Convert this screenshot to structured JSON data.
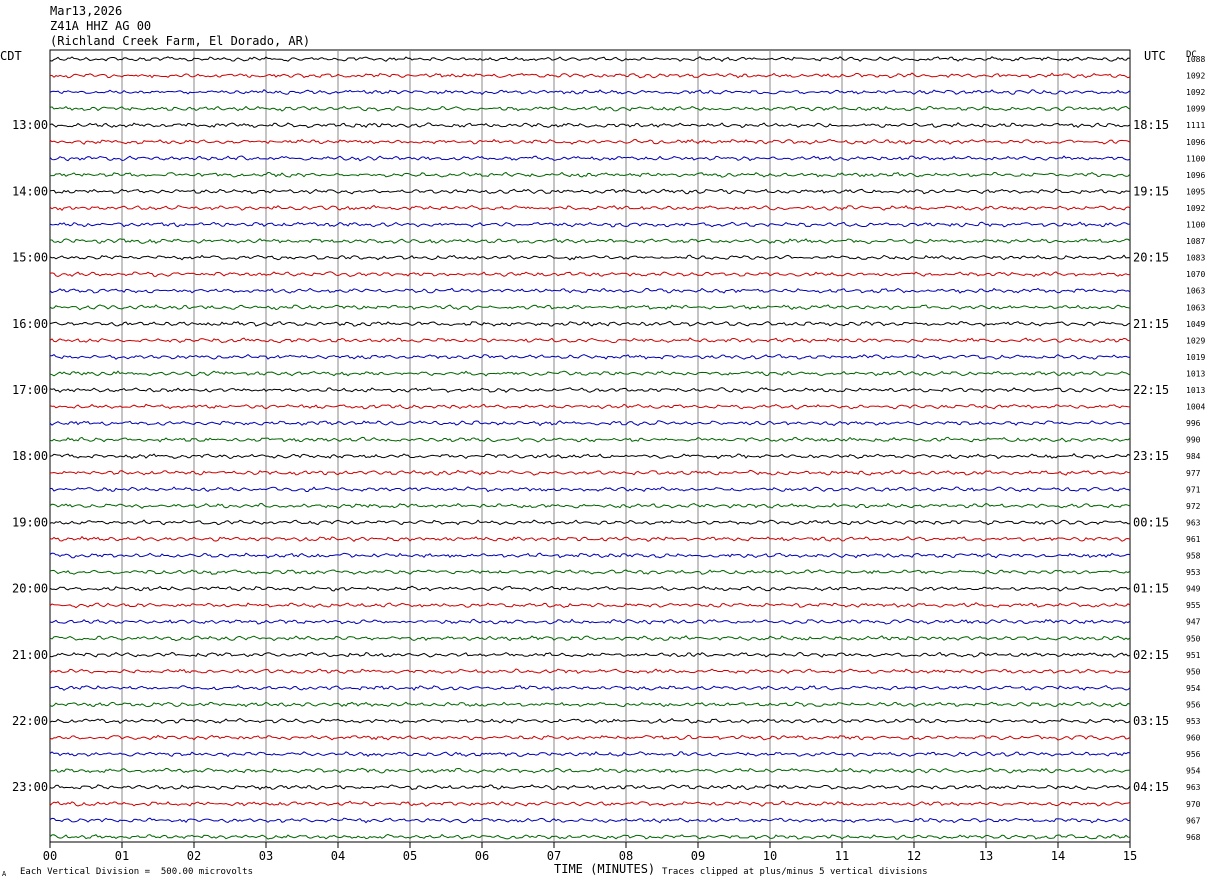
{
  "header": {
    "date": "Mar13,2026",
    "station": "Z41A HHZ AG 00",
    "location": "(Richland Creek Farm, El Dorado, AR)"
  },
  "labels": {
    "left_tz": "CDT",
    "right_tz": "UTC",
    "right_col_header": "DC",
    "xlabel": "TIME (MINUTES)",
    "scale_note": "Each Vertical Division =  500.00 microvolts",
    "clip_note": "Traces clipped at plus/minus 5 vertical divisions",
    "corner_mark": "A"
  },
  "colors": {
    "trace_cycle": [
      "#000000",
      "#cc0000",
      "#0000b4",
      "#006400"
    ],
    "grid": "#888888"
  },
  "chart_data": {
    "type": "line",
    "title": "",
    "xlabel": "TIME (MINUTES)",
    "x_ticks": [
      "00",
      "01",
      "02",
      "03",
      "04",
      "05",
      "06",
      "07",
      "08",
      "09",
      "10",
      "11",
      "12",
      "13",
      "14",
      "15"
    ],
    "xlim": [
      0,
      15
    ],
    "rows_per_hour": 4,
    "rows": 48,
    "left_hour_labels": [
      "13:00",
      "14:00",
      "15:00",
      "16:00",
      "17:00",
      "18:00",
      "19:00",
      "20:00",
      "21:00",
      "22:00",
      "23:00"
    ],
    "right_hour_labels": [
      "18:15",
      "19:15",
      "20:15",
      "21:15",
      "22:15",
      "23:15",
      "00:15",
      "01:15",
      "02:15",
      "03:15",
      "04:15"
    ],
    "dc_offsets": [
      1088,
      1092,
      1092,
      1099,
      1111,
      1096,
      1100,
      1096,
      1095,
      1092,
      1100,
      1087,
      1083,
      1070,
      1063,
      1063,
      1049,
      1029,
      1019,
      1013,
      1013,
      1004,
      996,
      990,
      984,
      977,
      971,
      972,
      963,
      961,
      958,
      953,
      949,
      955,
      947,
      950,
      951,
      950,
      954,
      956,
      953,
      960,
      956,
      954,
      963,
      970,
      967,
      968
    ]
  }
}
